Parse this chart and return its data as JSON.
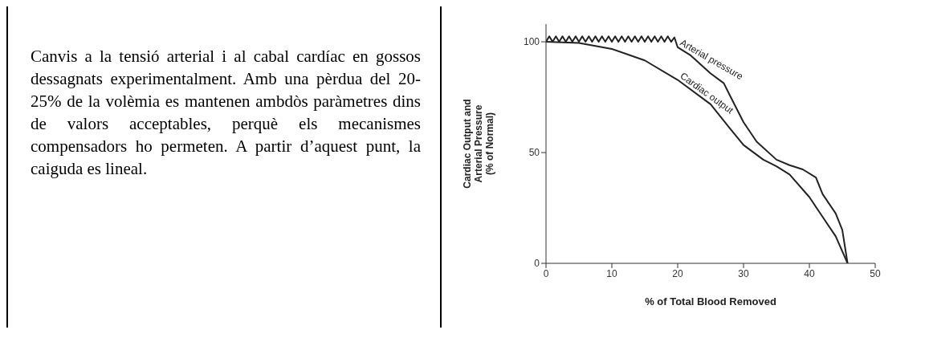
{
  "chart_data": {
    "type": "line",
    "xlabel": "% of Total Blood Removed",
    "ylabel": "Cardiac Output and\nArterial Pressure\n(% of Normal)",
    "xlim": [
      0,
      50
    ],
    "xticks": [
      0,
      10,
      20,
      30,
      40,
      50
    ],
    "ylim": [
      0,
      108
    ],
    "yticks": [
      0,
      50,
      100
    ],
    "annotations": [
      "Canvis a la tensió arterial i al cabal cardíac en gossos dessagnats experimentalment. Amb una pèrdua del 20-25% de la volèmia es mantenen ambdòs paràmetres dins de valors acceptables, perquè els mecanismes compensadors ho permeten. A partir d’aquest punt, la caiguda es lineal."
    ],
    "series": [
      {
        "name": "Arterial pressure",
        "color": "#222222",
        "x": [
          0,
          0.5,
          1,
          1.5,
          2,
          2.5,
          3,
          3.5,
          4,
          4.5,
          5,
          5.5,
          6,
          6.5,
          7,
          7.5,
          8,
          8.5,
          9,
          9.5,
          10,
          10.5,
          11,
          11.5,
          12,
          12.5,
          13,
          13.5,
          14,
          14.5,
          15,
          15.5,
          16,
          16.5,
          17,
          17.5,
          18,
          18.5,
          19,
          19.5,
          20,
          22,
          25,
          27,
          28,
          30,
          32,
          35,
          37,
          39,
          41,
          42,
          44,
          45,
          45.8
        ],
        "values": [
          100,
          102.5,
          100,
          102.5,
          100,
          102.5,
          100,
          102.5,
          100,
          102.5,
          100,
          102.5,
          100,
          102.5,
          100,
          102.5,
          100,
          102.5,
          100,
          102.5,
          100,
          102.5,
          100,
          102.5,
          100,
          102.5,
          100,
          102.5,
          100,
          102.5,
          100,
          102.5,
          100,
          102.5,
          100,
          102.5,
          100,
          102.5,
          100,
          102,
          97.5,
          93.8,
          85.7,
          81.3,
          75.4,
          63.7,
          54.9,
          46.8,
          44.3,
          42.4,
          38.7,
          31.3,
          22.5,
          15.1,
          0
        ]
      },
      {
        "name": "Cardiac output",
        "color": "#222222",
        "x": [
          0,
          5,
          10,
          15,
          20,
          25,
          28,
          30,
          33,
          35,
          37,
          40,
          42,
          44,
          45.8
        ],
        "values": [
          100,
          99.5,
          96.8,
          91.6,
          82.8,
          71.8,
          60.7,
          53.4,
          46.8,
          43.8,
          40.1,
          29.9,
          21,
          12.2,
          0
        ]
      }
    ]
  }
}
